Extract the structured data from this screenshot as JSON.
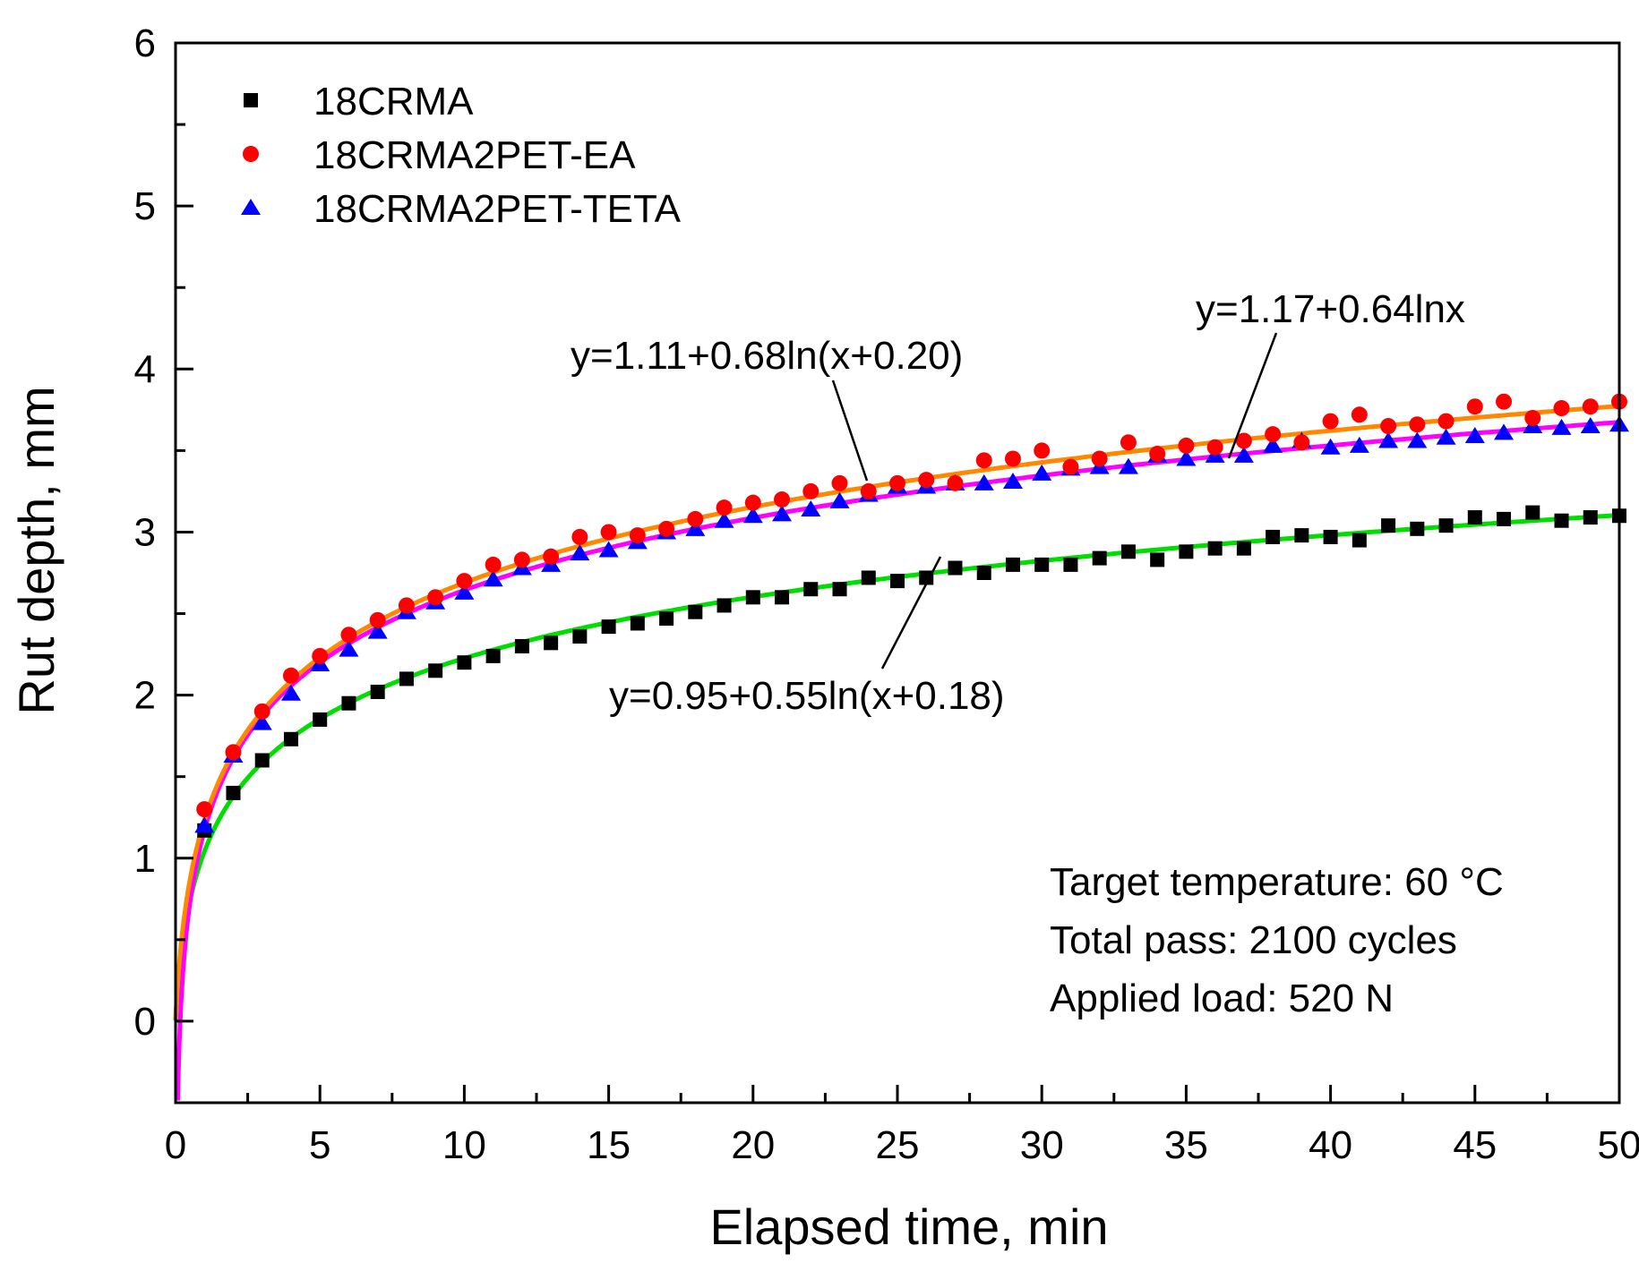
{
  "chart_data": {
    "type": "scatter",
    "xlabel": "Elapsed time, min",
    "ylabel": "Rut depth, mm",
    "xlim": [
      0,
      50
    ],
    "ylim": [
      -0.5,
      6
    ],
    "xticks": [
      0,
      5,
      10,
      15,
      20,
      25,
      30,
      35,
      40,
      45,
      50
    ],
    "yticks": [
      0,
      1,
      2,
      3,
      4,
      5,
      6
    ],
    "grid": false,
    "legend_position": "top-left",
    "series": [
      {
        "name": "18CRMA",
        "marker": "square",
        "color": "#000000",
        "x": [
          1,
          2,
          3,
          4,
          5,
          6,
          7,
          8,
          9,
          10,
          11,
          12,
          13,
          14,
          15,
          16,
          17,
          18,
          19,
          20,
          21,
          22,
          23,
          24,
          25,
          26,
          27,
          28,
          29,
          30,
          31,
          32,
          33,
          34,
          35,
          36,
          37,
          38,
          39,
          40,
          41,
          42,
          43,
          44,
          45,
          46,
          47,
          48,
          49,
          50
        ],
        "y": [
          1.17,
          1.4,
          1.6,
          1.73,
          1.85,
          1.95,
          2.02,
          2.1,
          2.15,
          2.2,
          2.24,
          2.3,
          2.32,
          2.36,
          2.42,
          2.44,
          2.47,
          2.51,
          2.55,
          2.6,
          2.6,
          2.65,
          2.65,
          2.72,
          2.7,
          2.72,
          2.78,
          2.75,
          2.8,
          2.8,
          2.8,
          2.84,
          2.88,
          2.83,
          2.88,
          2.9,
          2.9,
          2.97,
          2.98,
          2.97,
          2.95,
          3.04,
          3.02,
          3.04,
          3.09,
          3.08,
          3.12,
          3.07,
          3.09,
          3.1
        ]
      },
      {
        "name": "18CRMA2PET-EA",
        "marker": "circle",
        "color": "#ff0000",
        "x": [
          1,
          2,
          3,
          4,
          5,
          6,
          7,
          8,
          9,
          10,
          11,
          12,
          13,
          14,
          15,
          16,
          17,
          18,
          19,
          20,
          21,
          22,
          23,
          24,
          25,
          26,
          27,
          28,
          29,
          30,
          31,
          32,
          33,
          34,
          35,
          36,
          37,
          38,
          39,
          40,
          41,
          42,
          43,
          44,
          45,
          46,
          47,
          48,
          49,
          50
        ],
        "y": [
          1.3,
          1.65,
          1.9,
          2.12,
          2.24,
          2.37,
          2.46,
          2.55,
          2.6,
          2.7,
          2.8,
          2.83,
          2.85,
          2.97,
          3.0,
          2.98,
          3.02,
          3.08,
          3.15,
          3.18,
          3.2,
          3.25,
          3.3,
          3.25,
          3.3,
          3.32,
          3.3,
          3.44,
          3.45,
          3.5,
          3.4,
          3.45,
          3.55,
          3.48,
          3.53,
          3.52,
          3.56,
          3.6,
          3.55,
          3.68,
          3.72,
          3.65,
          3.66,
          3.68,
          3.77,
          3.8,
          3.7,
          3.76,
          3.77,
          3.8
        ]
      },
      {
        "name": "18CRMA2PET-TETA",
        "marker": "triangle",
        "color": "#0000ff",
        "x": [
          1,
          2,
          3,
          4,
          5,
          6,
          7,
          8,
          9,
          10,
          11,
          12,
          13,
          14,
          15,
          16,
          17,
          18,
          19,
          20,
          21,
          22,
          23,
          24,
          25,
          26,
          27,
          28,
          29,
          30,
          31,
          32,
          33,
          34,
          35,
          36,
          37,
          38,
          39,
          40,
          41,
          42,
          43,
          44,
          45,
          46,
          47,
          48,
          49,
          50
        ],
        "y": [
          1.2,
          1.63,
          1.83,
          2.01,
          2.19,
          2.28,
          2.39,
          2.51,
          2.57,
          2.63,
          2.71,
          2.78,
          2.8,
          2.87,
          2.89,
          2.94,
          3.0,
          3.02,
          3.07,
          3.1,
          3.11,
          3.14,
          3.19,
          3.23,
          3.28,
          3.28,
          3.3,
          3.3,
          3.31,
          3.36,
          3.39,
          3.4,
          3.4,
          3.47,
          3.45,
          3.47,
          3.47,
          3.53,
          3.56,
          3.52,
          3.53,
          3.56,
          3.56,
          3.58,
          3.59,
          3.61,
          3.65,
          3.64,
          3.65,
          3.66
        ]
      }
    ],
    "fits": [
      {
        "equation": "y=0.95+0.55ln(x+0.18)",
        "a": 0.95,
        "b": 0.55,
        "c": 0.18,
        "color": "#00dd00"
      },
      {
        "equation": "y=1.11+0.68ln(x+0.20)",
        "a": 1.11,
        "b": 0.68,
        "c": 0.2,
        "color": "#ff8800"
      },
      {
        "equation": "y=1.17+0.64lnx",
        "a": 1.17,
        "b": 0.64,
        "c": 0,
        "color": "#ff00ff"
      }
    ],
    "annotations": [
      "Target temperature: 60 °C",
      "Total pass: 2100 cycles",
      "Applied load: 520 N"
    ]
  }
}
